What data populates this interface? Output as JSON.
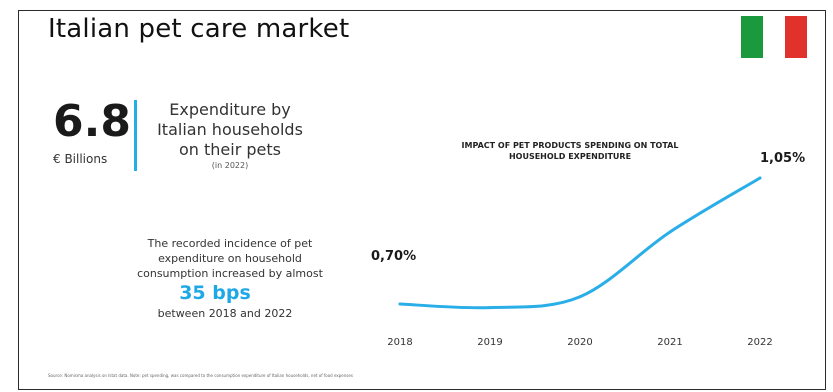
{
  "header": {
    "title": "Italian pet care market"
  },
  "flag": {
    "colors": [
      "#1b9a3d",
      "#ffffff",
      "#e0312b"
    ]
  },
  "kpi": {
    "value": "6.8",
    "unit": "€ Billions",
    "description": "Expenditure by Italian households on their pets",
    "note": "(in 2022)"
  },
  "incidence": {
    "text": "The recorded incidence of pet expenditure on household consumption increased by almost",
    "highlight": "35 bps",
    "period": "between 2018 and 2022"
  },
  "source": {
    "text": "Source: Nomisma analysis on Istat data. Note: pet spending, was compared to the consumption expenditure of Italian households, net of food expenses"
  },
  "chart_data": {
    "type": "line",
    "title": "IMPACT OF PET PRODUCTS SPENDING ON TOTAL HOUSEHOLD EXPENDITURE",
    "categories": [
      "2018",
      "2019",
      "2020",
      "2021",
      "2022"
    ],
    "series": [
      {
        "values": [
          0.7,
          0.69,
          0.72,
          0.9,
          1.05
        ]
      }
    ],
    "labels": {
      "first": "0,70%",
      "last": "1,05%"
    },
    "ylim": [
      0.6,
      1.1
    ],
    "grid": false,
    "color": "#2aaee8"
  }
}
